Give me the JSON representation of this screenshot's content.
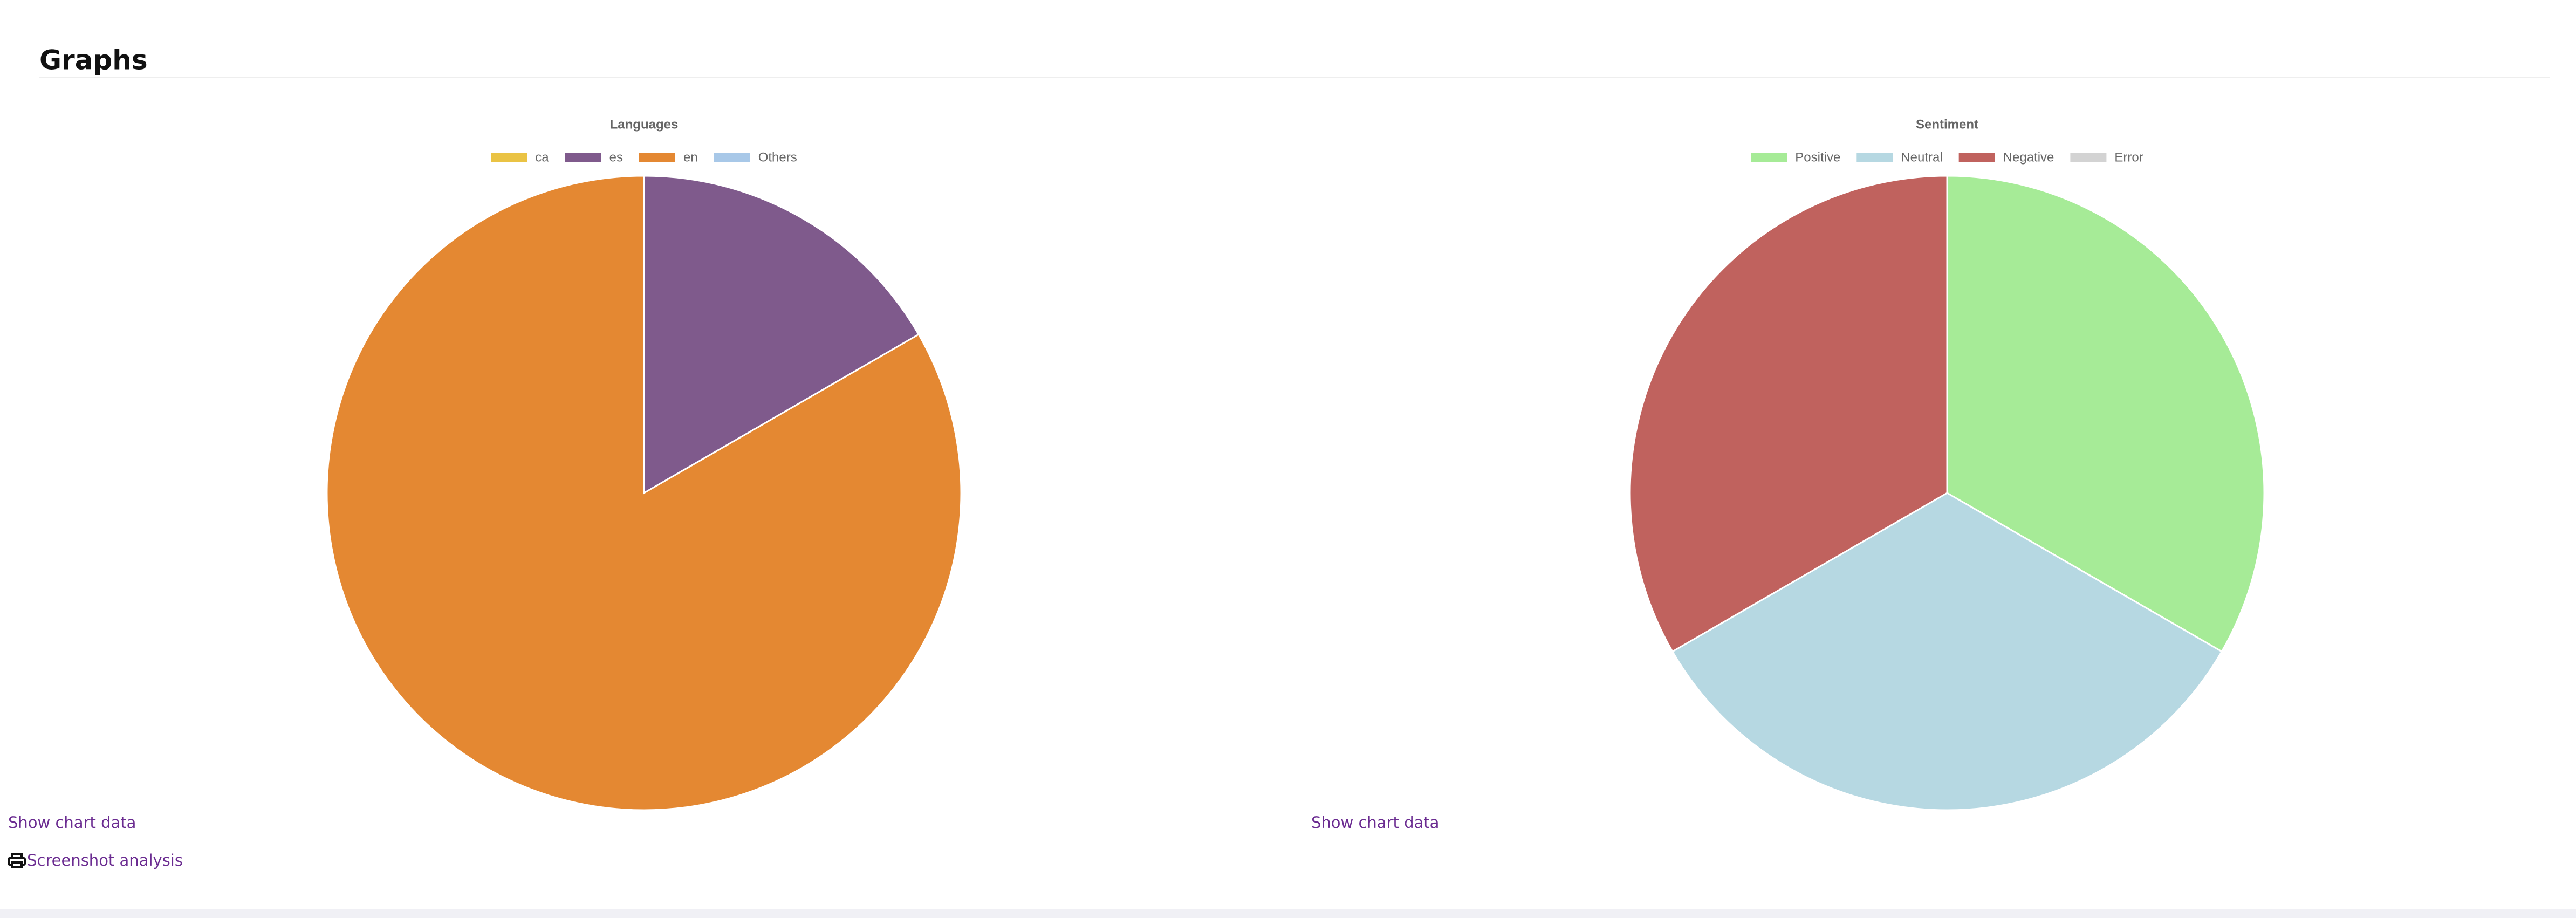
{
  "header": {
    "title": "Graphs"
  },
  "chart_data": [
    {
      "type": "pie",
      "title": "Languages",
      "categories": [
        "ca",
        "es",
        "en",
        "Others"
      ],
      "values": [
        0,
        1,
        5,
        0
      ],
      "colors": [
        "#eac344",
        "#7f5a8c",
        "#e48832",
        "#a8c8e8"
      ]
    },
    {
      "type": "pie",
      "title": "Sentiment",
      "categories": [
        "Positive",
        "Neutral",
        "Negative",
        "Error"
      ],
      "values": [
        1,
        1,
        1,
        0
      ],
      "colors": [
        "#a6eb97",
        "#b6d8e2",
        "#c0625e",
        "#d3d3d3"
      ]
    }
  ],
  "links": {
    "show_chart_data": [
      "Show chart data",
      "Show chart data"
    ],
    "screenshot_analysis": "Screenshot analysis"
  }
}
